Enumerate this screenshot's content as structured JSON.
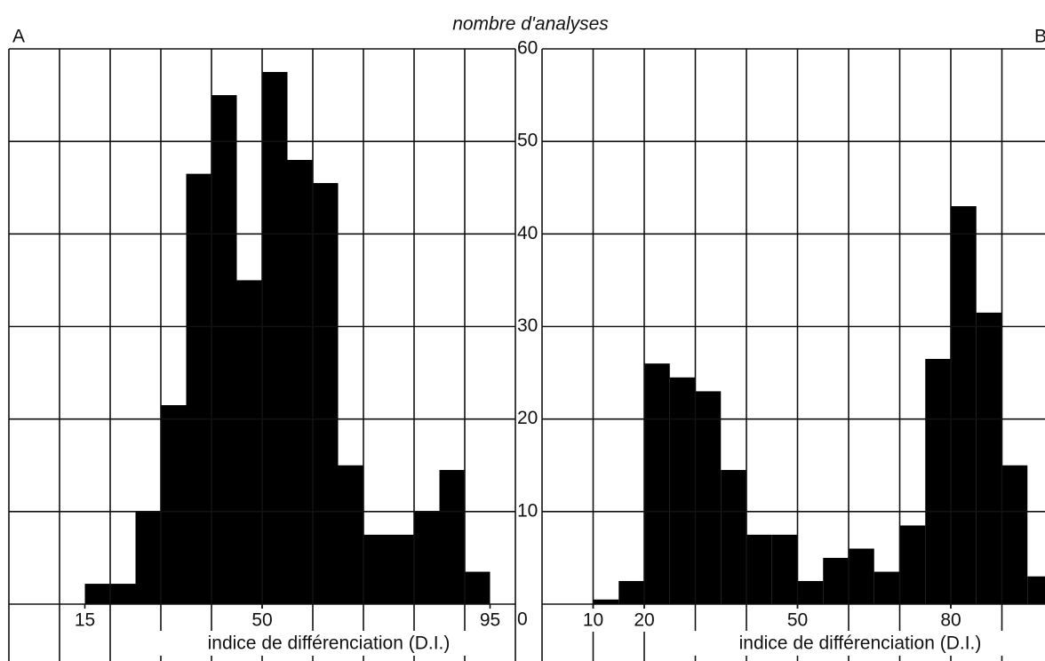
{
  "chart_data": [
    {
      "type": "histogram",
      "label": "A",
      "ylabel": "nombre d'analyses",
      "xlabel": "indice de différenciation (D.I.)",
      "bins": [
        15,
        20,
        25,
        30,
        35,
        40,
        45,
        50,
        55,
        60,
        65,
        70,
        75,
        80,
        85,
        90,
        95
      ],
      "counts": [
        2.2,
        2.2,
        10,
        21.5,
        46.5,
        55,
        35,
        57.5,
        48,
        45.5,
        15,
        7.5,
        7.5,
        10,
        14.5,
        3.5
      ],
      "color": "#000000",
      "xlim": [
        0,
        100
      ],
      "xticks": [
        15,
        50,
        95
      ],
      "xgrid": [
        10,
        20,
        30,
        40,
        50,
        60,
        70,
        80,
        90
      ],
      "ylim": [
        0,
        60
      ],
      "yticks": [
        0,
        10,
        20,
        30,
        40,
        50,
        60
      ],
      "grid": true
    },
    {
      "type": "histogram",
      "label": "B",
      "xlabel": "indice de différenciation (D.I.)",
      "bins": [
        10,
        15,
        20,
        25,
        30,
        35,
        40,
        45,
        50,
        55,
        60,
        65,
        70,
        75,
        80,
        85,
        90,
        95,
        100
      ],
      "counts": [
        0.5,
        2.5,
        26,
        24.5,
        23,
        14.5,
        7.5,
        7.5,
        2.5,
        5,
        6,
        3.5,
        8.5,
        26.5,
        43,
        31.5,
        15,
        3
      ],
      "color": "#000000",
      "xlim": [
        0,
        100
      ],
      "xticks": [
        10,
        20,
        50,
        80
      ],
      "xgrid": [
        10,
        20,
        30,
        40,
        50,
        60,
        70,
        80,
        90
      ],
      "ylim": [
        0,
        60
      ],
      "grid": true
    }
  ]
}
